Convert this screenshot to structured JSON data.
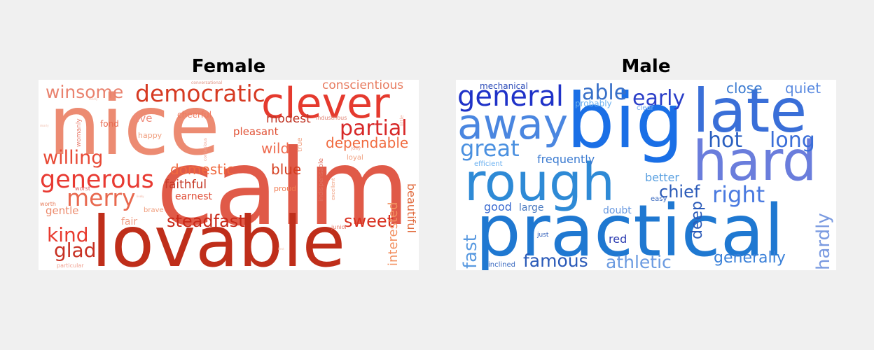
{
  "panels": [
    {
      "title": "Female",
      "words": [
        {
          "text": "calm",
          "color": "#e05a48"
        },
        {
          "text": "nice",
          "color": "#ec8b72"
        },
        {
          "text": "lovable",
          "color": "#bf2e1a"
        },
        {
          "text": "clever",
          "color": "#e53a2e"
        },
        {
          "text": "democratic",
          "color": "#d63a22"
        },
        {
          "text": "winsome",
          "color": "#e9826e"
        },
        {
          "text": "conscientious",
          "color": "#e77a5e"
        },
        {
          "text": "partial",
          "color": "#d72828"
        },
        {
          "text": "dependable",
          "color": "#f06a3e"
        },
        {
          "text": "generous",
          "color": "#e83a32"
        },
        {
          "text": "willing",
          "color": "#e84a36"
        },
        {
          "text": "merry",
          "color": "#e8684e"
        },
        {
          "text": "domestic",
          "color": "#ef6a40"
        },
        {
          "text": "blue",
          "color": "#d43e20"
        },
        {
          "text": "wild",
          "color": "#ee6a4e"
        },
        {
          "text": "modest",
          "color": "#bf3424"
        },
        {
          "text": "pleasant",
          "color": "#e05034"
        },
        {
          "text": "faithful",
          "color": "#c63a28"
        },
        {
          "text": "earnest",
          "color": "#e0503a"
        },
        {
          "text": "steadfast",
          "color": "#c82818"
        },
        {
          "text": "sweet",
          "color": "#d83020"
        },
        {
          "text": "kind",
          "color": "#e83a2e"
        },
        {
          "text": "glad",
          "color": "#c73022"
        },
        {
          "text": "gentle",
          "color": "#ec8a6c"
        },
        {
          "text": "fair",
          "color": "#f0a088"
        },
        {
          "text": "interested",
          "color": "#f29060"
        },
        {
          "text": "beautiful",
          "color": "#e06a3c"
        },
        {
          "text": "live",
          "color": "#ef8a7a"
        },
        {
          "text": "fond",
          "color": "#e76a50"
        },
        {
          "text": "happy",
          "color": "#f0a080"
        },
        {
          "text": "cheerful",
          "color": "#ef7a60"
        },
        {
          "text": "proud",
          "color": "#f07a50"
        },
        {
          "text": "brave",
          "color": "#f0a080"
        },
        {
          "text": "worst",
          "color": "#e06060"
        },
        {
          "text": "worth",
          "color": "#e88060"
        },
        {
          "text": "womanly",
          "color": "#e87a6a"
        },
        {
          "text": "industrious",
          "color": "#e08070"
        },
        {
          "text": "conversational",
          "color": "#e09080"
        },
        {
          "text": "contagious",
          "color": "#f0a090"
        },
        {
          "text": "true",
          "color": "#f0a080"
        },
        {
          "text": "jolly",
          "color": "#f0b0a0"
        },
        {
          "text": "loyal",
          "color": "#f0a080"
        },
        {
          "text": "indispensable",
          "color": "#e07060"
        },
        {
          "text": "excellent",
          "color": "#f0a080"
        },
        {
          "text": "junior",
          "color": "#e87a6a"
        },
        {
          "text": "little",
          "color": "#f0b0a0"
        },
        {
          "text": "particular",
          "color": "#f0a090"
        },
        {
          "text": "best",
          "color": "#f0c0b0"
        },
        {
          "text": "lively",
          "color": "#f0b0a0"
        },
        {
          "text": "fondly",
          "color": "#f0c0b0"
        },
        {
          "text": "dearly",
          "color": "#f0c0b0"
        }
      ]
    },
    {
      "title": "Male",
      "words": [
        {
          "text": "big",
          "color": "#1a6fe6"
        },
        {
          "text": "practical",
          "color": "#1f78d1"
        },
        {
          "text": "late",
          "color": "#3a6fd8"
        },
        {
          "text": "hard",
          "color": "#6a7ddc"
        },
        {
          "text": "rough",
          "color": "#2e8ad6"
        },
        {
          "text": "away",
          "color": "#4a86e0"
        },
        {
          "text": "general",
          "color": "#1f32c8"
        },
        {
          "text": "great",
          "color": "#4a90e0"
        },
        {
          "text": "able",
          "color": "#3870c8"
        },
        {
          "text": "early",
          "color": "#2a3ec8"
        },
        {
          "text": "close",
          "color": "#3a7ad0"
        },
        {
          "text": "quiet",
          "color": "#5a8ae0"
        },
        {
          "text": "hot",
          "color": "#2a5fc0"
        },
        {
          "text": "long",
          "color": "#3a6ed8"
        },
        {
          "text": "right",
          "color": "#4a7ae0"
        },
        {
          "text": "chief",
          "color": "#2a5ab8"
        },
        {
          "text": "better",
          "color": "#5aa0e0"
        },
        {
          "text": "frequently",
          "color": "#3a7ad0"
        },
        {
          "text": "probably",
          "color": "#6ab0f0"
        },
        {
          "text": "mechanical",
          "color": "#2a4ab8"
        },
        {
          "text": "efficient",
          "color": "#6ab0f0"
        },
        {
          "text": "good",
          "color": "#3a6ad0"
        },
        {
          "text": "large",
          "color": "#4a7ac0"
        },
        {
          "text": "doubt",
          "color": "#6a9ae0"
        },
        {
          "text": "deep",
          "color": "#2a5ab8"
        },
        {
          "text": "easy",
          "color": "#3a6ac0"
        },
        {
          "text": "hardly",
          "color": "#7a9ae0"
        },
        {
          "text": "generally",
          "color": "#3a80d8"
        },
        {
          "text": "athletic",
          "color": "#6a9ae0"
        },
        {
          "text": "famous",
          "color": "#2a5ab8"
        },
        {
          "text": "red",
          "color": "#2a3ab0"
        },
        {
          "text": "fast",
          "color": "#5a9ae0"
        },
        {
          "text": "just",
          "color": "#2a5ab8"
        },
        {
          "text": "inclined",
          "color": "#3a6ac0"
        },
        {
          "text": "clear",
          "color": "#7ab0f0"
        }
      ]
    }
  ]
}
